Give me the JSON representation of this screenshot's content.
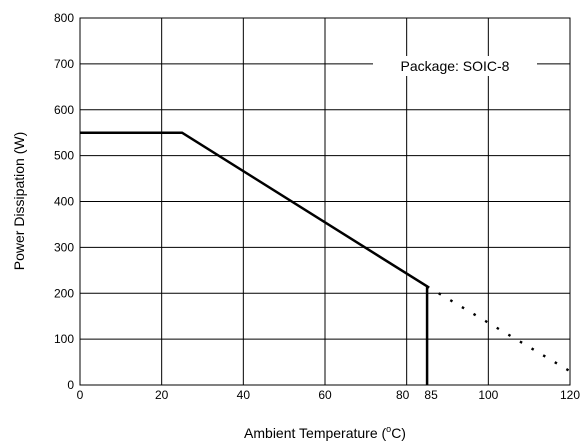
{
  "chart_data": {
    "type": "line",
    "xlabel": "Ambient Temperature (°C)",
    "xlabel_main": "Ambient Temperature (",
    "xlabel_degree": "o",
    "xlabel_unit": "C)",
    "ylabel": "Power Dissipation (W)",
    "xlim": [
      0,
      120
    ],
    "ylim": [
      0,
      800
    ],
    "x_ticks": [
      0,
      20,
      40,
      60,
      80,
      85,
      100,
      120
    ],
    "y_ticks": [
      0,
      100,
      200,
      300,
      400,
      500,
      600,
      700,
      800
    ],
    "grid": true,
    "annotation": "Package: SOIC-8",
    "series": [
      {
        "style": "solid",
        "x": [
          0,
          25,
          85,
          85
        ],
        "y": [
          550,
          550,
          215,
          0
        ]
      },
      {
        "style": "dotted",
        "x": [
          85,
          120
        ],
        "y": [
          215,
          30
        ]
      }
    ]
  }
}
